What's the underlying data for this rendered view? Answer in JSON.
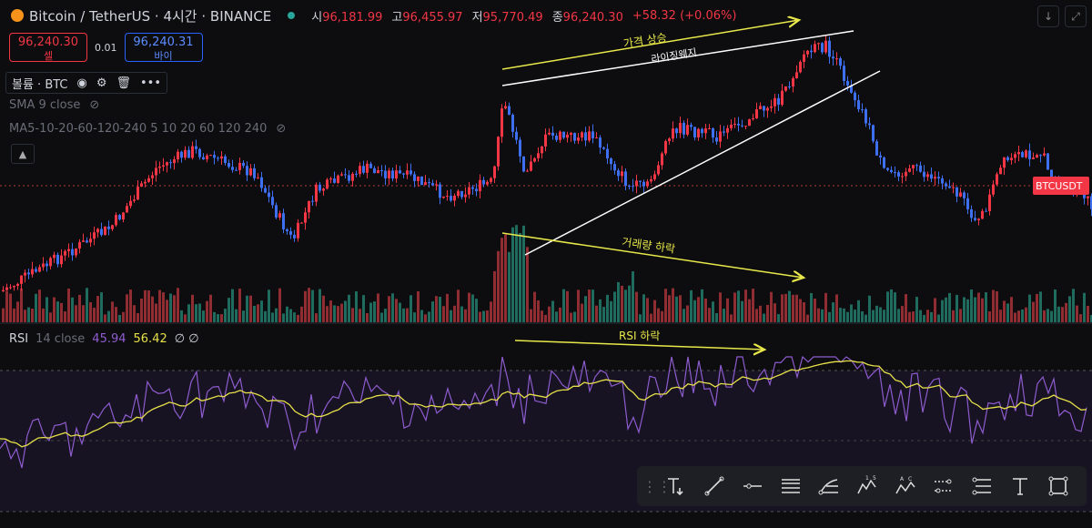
{
  "header": {
    "symbol": "Bitcoin / TetherUS · 4시간 · BINANCE",
    "open_label": "시",
    "open": "96,181.99",
    "high_label": "고",
    "high": "96,455.97",
    "low_label": "저",
    "low": "95,770.49",
    "close_label": "종",
    "close": "96,240.30",
    "change": "+58.32 (+0.06%)"
  },
  "trade": {
    "sell_price": "96,240.30",
    "sell_label": "셀",
    "spread": "0.01",
    "buy_price": "96,240.31",
    "buy_label": "바이"
  },
  "volume_indicator": {
    "label": "볼륨 · BTC"
  },
  "sma_label": "SMA 9 close",
  "ma_label": "MA5-10-20-60-120-240 5 10 20 60 120 240",
  "rsi": {
    "label": "RSI",
    "params": "14 close",
    "value1": "45.94",
    "value2": "56.42",
    "extra": "∅ ∅"
  },
  "price_tag": "BTCUSDT",
  "annotations": {
    "price_up": "가격 상승",
    "wedge": "라이징웨지",
    "volume_down": "거래량 하락",
    "rsi_down": "RSI 하락"
  },
  "colors": {
    "up": "#f23645",
    "down": "#3d6ff0",
    "rsi": "#8e5ccf",
    "rsi_ma": "#e6e04a",
    "arrow": "#e8e84a"
  },
  "toolbar_icons": [
    "text-anchor-icon",
    "trend-line-icon",
    "horizontal-ray-icon",
    "parallel-channel-icon",
    "fib-icon",
    "elliott-wave-icon",
    "abcd-pattern-icon",
    "date-range-icon",
    "price-range-icon",
    "text-icon",
    "rectangle-icon"
  ]
}
